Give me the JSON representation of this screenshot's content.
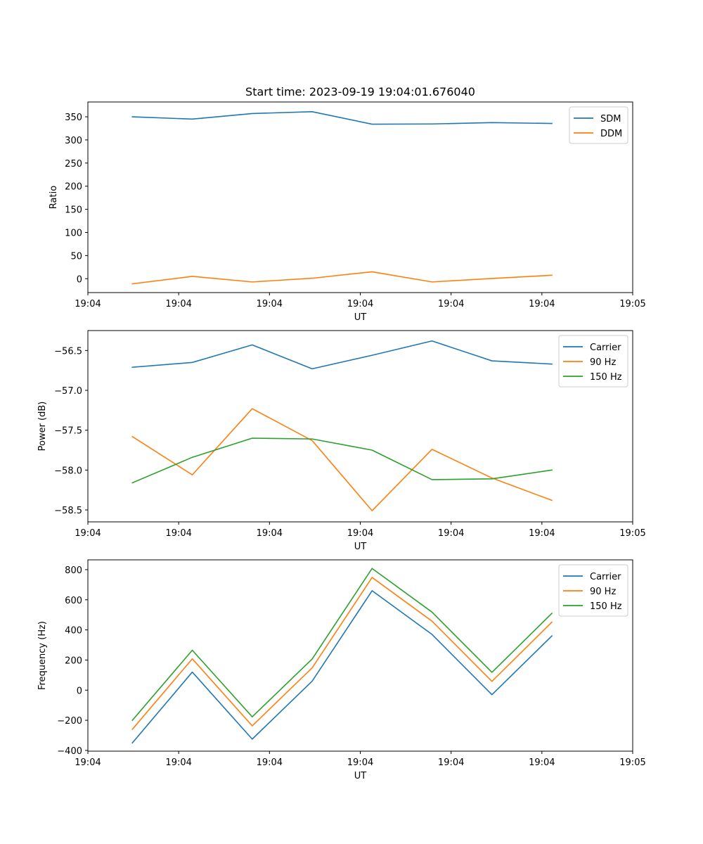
{
  "figure_title": "Start time: 2023-09-19 19:04:01.676040",
  "colors": {
    "blue": "#1f77b4",
    "orange": "#ff7f0e",
    "green": "#2ca02c"
  },
  "chart_data": [
    {
      "type": "line",
      "title": "Start time: 2023-09-19 19:04:01.676040",
      "xlabel": "UT",
      "ylabel": "Ratio",
      "xlim": [
        0.0,
        6.0
      ],
      "ylim": [
        -30,
        382
      ],
      "x_ticks": [
        0.0,
        1.0,
        2.0,
        3.0,
        4.0,
        5.0,
        6.0
      ],
      "x_tick_labels": [
        "19:04",
        "19:04",
        "19:04",
        "19:04",
        "19:04",
        "19:04",
        "19:05"
      ],
      "y_ticks": [
        0,
        50,
        100,
        150,
        200,
        250,
        300,
        350
      ],
      "y_tick_labels": [
        "0",
        "50",
        "100",
        "150",
        "200",
        "250",
        "300",
        "350"
      ],
      "x": [
        0.49,
        1.15,
        1.81,
        2.47,
        3.13,
        3.79,
        4.45,
        5.11
      ],
      "legend_position": "top-right",
      "series": [
        {
          "name": "SDM",
          "color": "#1f77b4",
          "values": [
            350,
            345,
            357,
            361,
            334,
            334.5,
            337.5,
            335.5
          ]
        },
        {
          "name": "DDM",
          "color": "#ff7f0e",
          "values": [
            -11,
            5,
            -7,
            1,
            15,
            -7,
            0.5,
            7.5
          ]
        }
      ]
    },
    {
      "type": "line",
      "title": "",
      "xlabel": "UT",
      "ylabel": "Power (dB)",
      "xlim": [
        0.0,
        6.0
      ],
      "ylim": [
        -58.65,
        -56.25
      ],
      "x_ticks": [
        0.0,
        1.0,
        2.0,
        3.0,
        4.0,
        5.0,
        6.0
      ],
      "x_tick_labels": [
        "19:04",
        "19:04",
        "19:04",
        "19:04",
        "19:04",
        "19:04",
        "19:05"
      ],
      "y_ticks": [
        -58.5,
        -58.0,
        -57.5,
        -57.0,
        -56.5
      ],
      "y_tick_labels": [
        "−58.5",
        "−58.0",
        "−57.5",
        "−57.0",
        "−56.5"
      ],
      "x": [
        0.49,
        1.15,
        1.81,
        2.47,
        3.13,
        3.79,
        4.45,
        5.11
      ],
      "legend_position": "top-right",
      "series": [
        {
          "name": "Carrier",
          "color": "#1f77b4",
          "values": [
            -56.71,
            -56.65,
            -56.43,
            -56.73,
            -56.56,
            -56.38,
            -56.63,
            -56.67
          ]
        },
        {
          "name": "90 Hz",
          "color": "#ff7f0e",
          "values": [
            -57.58,
            -58.06,
            -57.23,
            -57.63,
            -58.51,
            -57.74,
            -58.1,
            -58.38
          ]
        },
        {
          "name": "150 Hz",
          "color": "#2ca02c",
          "values": [
            -58.16,
            -57.84,
            -57.6,
            -57.61,
            -57.75,
            -58.12,
            -58.11,
            -58.0
          ]
        }
      ]
    },
    {
      "type": "line",
      "title": "",
      "xlabel": "UT",
      "ylabel": "Frequency (Hz)",
      "xlim": [
        0.0,
        6.0
      ],
      "ylim": [
        -405,
        865
      ],
      "x_ticks": [
        0.0,
        1.0,
        2.0,
        3.0,
        4.0,
        5.0,
        6.0
      ],
      "x_tick_labels": [
        "19:04",
        "19:04",
        "19:04",
        "19:04",
        "19:04",
        "19:04",
        "19:05"
      ],
      "y_ticks": [
        -400,
        -200,
        0,
        200,
        400,
        600,
        800
      ],
      "y_tick_labels": [
        "−400",
        "−200",
        "0",
        "200",
        "400",
        "600",
        "800"
      ],
      "x": [
        0.49,
        1.15,
        1.81,
        2.47,
        3.13,
        3.79,
        4.45,
        5.11
      ],
      "legend_position": "top-right",
      "series": [
        {
          "name": "Carrier",
          "color": "#1f77b4",
          "values": [
            -350,
            120,
            -325,
            60,
            660,
            370,
            -30,
            360
          ]
        },
        {
          "name": "90 Hz",
          "color": "#ff7f0e",
          "values": [
            -260,
            208,
            -237,
            148,
            748,
            458,
            58,
            452
          ]
        },
        {
          "name": "150 Hz",
          "color": "#2ca02c",
          "values": [
            -200,
            265,
            -177,
            207,
            808,
            518,
            118,
            510
          ]
        }
      ]
    }
  ]
}
